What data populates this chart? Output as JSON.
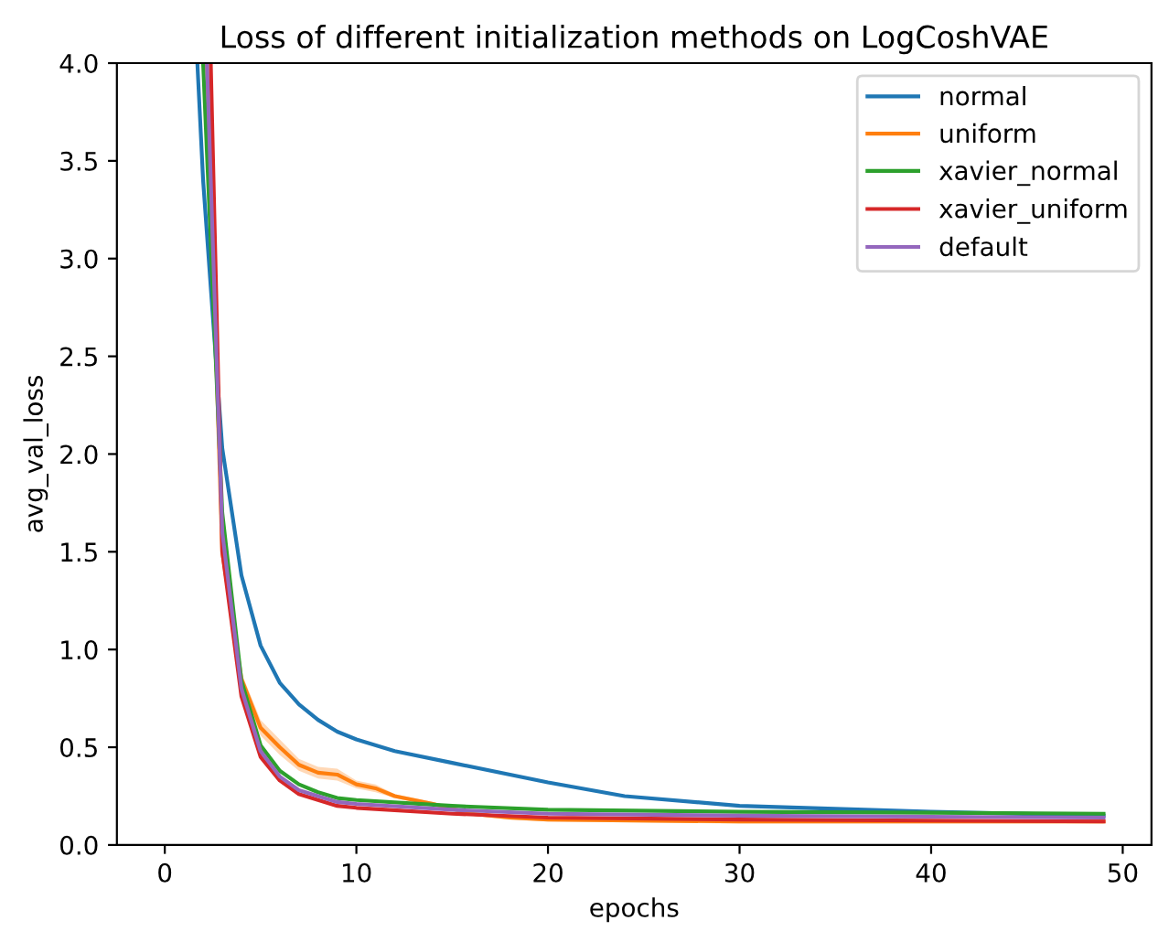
{
  "chart_data": {
    "type": "line",
    "title": "Loss of different initialization methods on LogCoshVAE",
    "xlabel": "epochs",
    "ylabel": "avg_val_loss",
    "xlim": [
      -2.5,
      51.5
    ],
    "ylim": [
      0,
      4.0
    ],
    "xticks": [
      0,
      10,
      20,
      30,
      40,
      50
    ],
    "yticks": [
      {
        "value": 0,
        "label": "0.0"
      },
      0.5,
      {
        "value": 1,
        "label": "1.0"
      },
      1.5,
      {
        "value": 2,
        "label": "2.0"
      },
      2.5,
      {
        "value": 3,
        "label": "3.0"
      },
      3.5,
      {
        "value": 4,
        "label": "4.0"
      }
    ],
    "grid": false,
    "legend": "top right",
    "marker": "none",
    "line_style": "solid",
    "series": [
      {
        "name": "normal",
        "color": "#1f77b4",
        "x": [
          1.7,
          2,
          3,
          4,
          5,
          6,
          7,
          8,
          9,
          10,
          12,
          15,
          20,
          24,
          30,
          40,
          49
        ],
        "values": [
          4.0,
          3.4,
          2.03,
          1.38,
          1.02,
          0.83,
          0.72,
          0.64,
          0.58,
          0.54,
          0.48,
          0.42,
          0.32,
          0.25,
          0.2,
          0.17,
          0.15
        ]
      },
      {
        "name": "uniform",
        "color": "#ff7f0e",
        "x": [
          2.2,
          3,
          4,
          5,
          6,
          7,
          8,
          9,
          10,
          11,
          12,
          14,
          16,
          18,
          20,
          30,
          49
        ],
        "values": [
          4.0,
          1.5,
          0.85,
          0.6,
          0.5,
          0.41,
          0.37,
          0.36,
          0.31,
          0.29,
          0.25,
          0.21,
          0.16,
          0.14,
          0.13,
          0.12,
          0.12
        ],
        "lower": [
          4.0,
          1.48,
          0.82,
          0.56,
          0.46,
          0.38,
          0.34,
          0.33,
          0.29,
          0.27,
          0.24,
          0.2,
          0.15,
          0.13,
          0.12,
          0.11,
          0.11
        ],
        "upper": [
          4.0,
          1.52,
          0.88,
          0.64,
          0.54,
          0.44,
          0.4,
          0.39,
          0.33,
          0.31,
          0.26,
          0.22,
          0.17,
          0.15,
          0.14,
          0.13,
          0.13
        ]
      },
      {
        "name": "xavier_normal",
        "color": "#2ca02c",
        "x": [
          2.0,
          3,
          4,
          5,
          6,
          7,
          8,
          9,
          10,
          15,
          20,
          30,
          49
        ],
        "values": [
          4.0,
          1.7,
          0.84,
          0.51,
          0.38,
          0.31,
          0.27,
          0.24,
          0.23,
          0.2,
          0.18,
          0.17,
          0.16
        ]
      },
      {
        "name": "xavier_uniform",
        "color": "#d62728",
        "x": [
          2.4,
          3,
          4,
          5,
          6,
          7,
          8,
          9,
          10,
          15,
          20,
          30,
          49
        ],
        "values": [
          4.0,
          1.5,
          0.76,
          0.45,
          0.33,
          0.26,
          0.23,
          0.2,
          0.19,
          0.16,
          0.14,
          0.13,
          0.12
        ]
      },
      {
        "name": "default",
        "color": "#9467bd",
        "x": [
          2.2,
          3,
          4,
          5,
          6,
          7,
          8,
          9,
          10,
          15,
          20,
          30,
          49
        ],
        "values": [
          4.0,
          1.6,
          0.8,
          0.48,
          0.35,
          0.28,
          0.25,
          0.22,
          0.21,
          0.18,
          0.16,
          0.15,
          0.14
        ]
      }
    ]
  }
}
